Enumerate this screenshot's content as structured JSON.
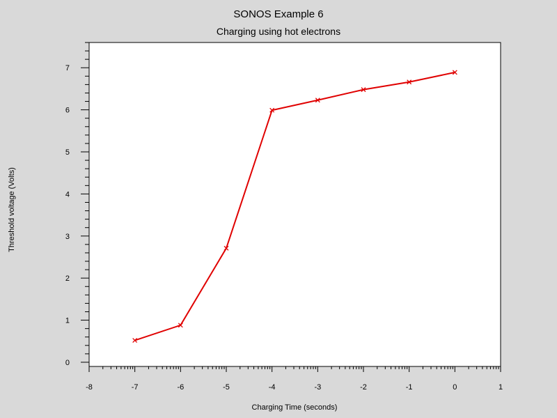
{
  "title": "SONOS Example 6",
  "subtitle": "Charging using hot electrons",
  "chart_data": {
    "type": "line",
    "title": "SONOS Example 6",
    "subtitle": "Charging using hot electrons",
    "xlabel": "Charging Time (seconds)",
    "ylabel": "Threshold voltage (Volts)",
    "x_scale": "log10 (tick labels are exponents)",
    "xlim": [
      -8,
      1
    ],
    "ylim": [
      -0.1,
      7.6
    ],
    "x_ticks": [
      "-8",
      "-7",
      "-6",
      "-5",
      "-4",
      "-3",
      "-2",
      "-1",
      "0",
      "1"
    ],
    "y_ticks": [
      "0",
      "1",
      "2",
      "3",
      "4",
      "5",
      "6",
      "7"
    ],
    "grid": false,
    "series": [
      {
        "color": "#e00000",
        "marker": "x",
        "x": [
          -7,
          -6,
          -5,
          -4,
          -3,
          -2,
          -1,
          0
        ],
        "y": [
          0.52,
          0.88,
          2.71,
          5.99,
          6.23,
          6.48,
          6.66,
          6.89
        ]
      }
    ]
  }
}
